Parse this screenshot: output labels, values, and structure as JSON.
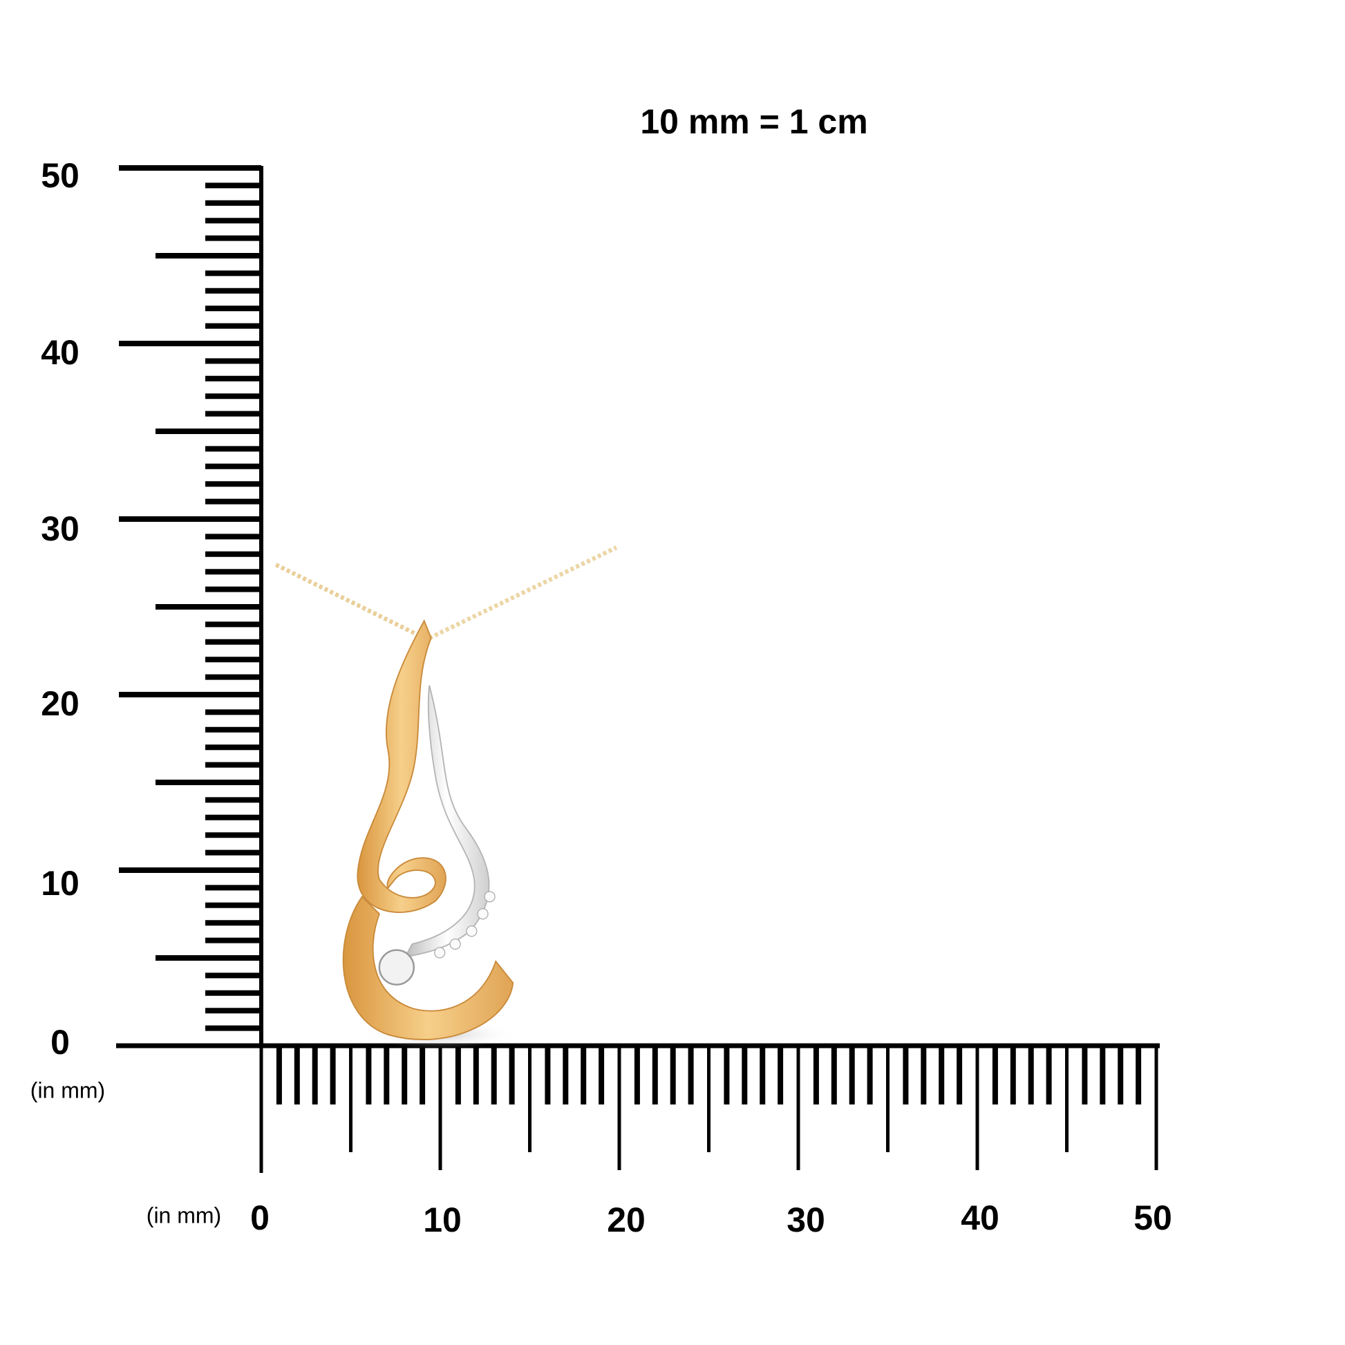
{
  "title": "10 mm = 1 cm",
  "vertical_ruler": {
    "unit_label": "(in mm)",
    "tick_labels": [
      "0",
      "10",
      "20",
      "30",
      "40",
      "50"
    ],
    "range_mm": [
      0,
      50
    ]
  },
  "horizontal_ruler": {
    "unit_label": "(in mm)",
    "tick_labels": [
      "0",
      "10",
      "20",
      "30",
      "40",
      "50"
    ],
    "range_mm": [
      0,
      50
    ]
  },
  "colors": {
    "ruler": "#000000",
    "gold": "#E8B466",
    "white_gold": "#E6E6E6"
  }
}
